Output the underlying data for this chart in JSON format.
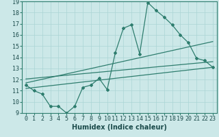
{
  "title": "",
  "xlabel": "Humidex (Indice chaleur)",
  "xlim": [
    -0.5,
    23.5
  ],
  "ylim": [
    9,
    19
  ],
  "xticks": [
    0,
    1,
    2,
    3,
    4,
    5,
    6,
    7,
    8,
    9,
    10,
    11,
    12,
    13,
    14,
    15,
    16,
    17,
    18,
    19,
    20,
    21,
    22,
    23
  ],
  "yticks": [
    9,
    10,
    11,
    12,
    13,
    14,
    15,
    16,
    17,
    18,
    19
  ],
  "main_x": [
    0,
    1,
    2,
    3,
    4,
    5,
    6,
    7,
    8,
    9,
    10,
    11,
    12,
    13,
    14,
    15,
    16,
    17,
    18,
    19,
    20,
    21,
    22,
    23
  ],
  "main_y": [
    11.5,
    11.0,
    10.7,
    9.6,
    9.6,
    9.0,
    9.6,
    11.3,
    11.5,
    12.1,
    11.1,
    14.4,
    16.6,
    16.9,
    14.3,
    18.9,
    18.2,
    17.6,
    16.9,
    16.0,
    15.3,
    13.9,
    13.7,
    13.1
  ],
  "trend1_x": [
    0,
    23
  ],
  "trend1_y": [
    11.2,
    13.1
  ],
  "trend2_x": [
    0,
    23
  ],
  "trend2_y": [
    11.7,
    15.4
  ],
  "trend3_x": [
    0,
    23
  ],
  "trend3_y": [
    12.05,
    13.6
  ],
  "color": "#2e7d6e",
  "bg_color": "#cce8e8",
  "grid_color": "#aad4d4",
  "tick_fontsize": 6,
  "label_fontsize": 7
}
